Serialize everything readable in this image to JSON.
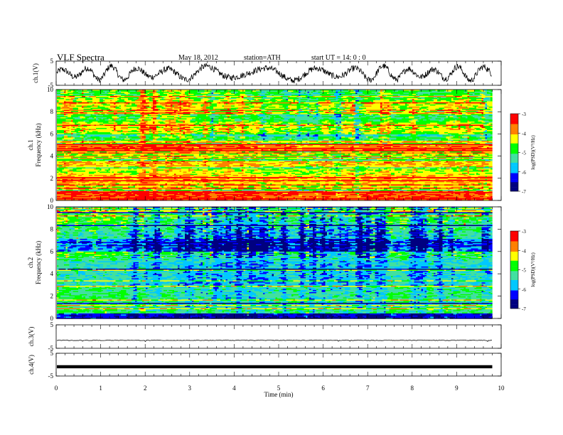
{
  "header": {
    "title": "VLF  Spectra",
    "date": "May 18, 2012",
    "station": "station=ATH",
    "start": "start  UT  =    14: 0  : 0"
  },
  "chart_data": [
    {
      "type": "line",
      "ylabel": "ch.1(V)",
      "ylim": [
        -5,
        5
      ],
      "yticks": [
        "5",
        "-5"
      ],
      "note": "dense waveform spanning roughly -4 to 4 V"
    },
    {
      "type": "heatmap",
      "ylabel_channel": "ch.1",
      "ylabel": "Frequency  (kHz)",
      "ylim": [
        0,
        10
      ],
      "yticks": [
        "0",
        "2",
        "4",
        "6",
        "8",
        "10"
      ],
      "colorbar": {
        "label": "log(PSD)(V²/Hz)",
        "range": [
          -7,
          -3
        ],
        "ticks": [
          "-3",
          "-4",
          "-5",
          "-6",
          "-7"
        ]
      }
    },
    {
      "type": "heatmap",
      "ylabel_channel": "ch.2",
      "ylabel": "Frequency  (kHz)",
      "ylim": [
        0,
        10
      ],
      "yticks": [
        "0",
        "2",
        "4",
        "6",
        "8",
        "10"
      ],
      "colorbar": {
        "label": "log(PSD)(V²/Hz)",
        "range": [
          -7,
          -3
        ],
        "ticks": [
          "-3",
          "-4",
          "-5",
          "-6",
          "-7"
        ]
      }
    },
    {
      "type": "line",
      "ylabel": "ch.3(V)",
      "ylim": [
        -5,
        5
      ],
      "yticks": [
        "5",
        "-5"
      ],
      "note": "flat trace near 0 V"
    },
    {
      "type": "line",
      "ylabel": "ch.4(V)",
      "ylim": [
        -5,
        5
      ],
      "yticks": [
        "5",
        "-5"
      ],
      "note": "flat thick trace near 0 V"
    }
  ],
  "xaxis": {
    "label": "Time  (min)",
    "range": [
      0,
      10
    ],
    "ticks": [
      "0",
      "1",
      "2",
      "3",
      "4",
      "5",
      "6",
      "7",
      "8",
      "9",
      "10"
    ],
    "data_end": 9.8
  },
  "colors": {
    "colormap": [
      "#000080",
      "#0000ff",
      "#00c8ff",
      "#40e0a0",
      "#00ff00",
      "#ffff00",
      "#ff8000",
      "#ff0000",
      "#ffffff"
    ]
  }
}
